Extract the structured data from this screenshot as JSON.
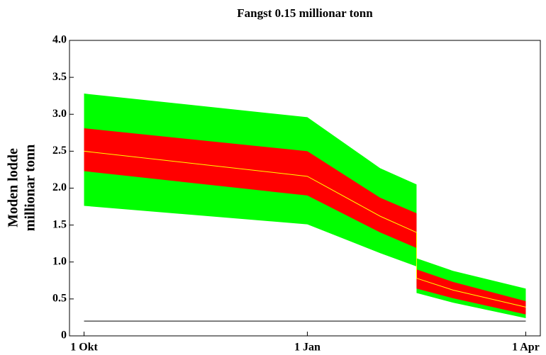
{
  "chart_data": {
    "type": "fan",
    "title": "Fangst 0.15 millionar tonn",
    "y_label": [
      "Moden lodde",
      "millionar tonn"
    ],
    "x": [
      0,
      92,
      122,
      137,
      137,
      152,
      182
    ],
    "xlim": [
      -6,
      188
    ],
    "xticks": [
      {
        "value": 0,
        "label": "1 Okt"
      },
      {
        "value": 92,
        "label": "1 Jan"
      },
      {
        "value": 182,
        "label": "1 Apr"
      }
    ],
    "ylim": [
      0,
      4
    ],
    "yticks": [
      0,
      0.5,
      {
        "value": 1,
        "label": "1.0"
      },
      1.5,
      {
        "value": 2,
        "label": "2.0"
      },
      2.5,
      {
        "value": 3,
        "label": "3.0"
      },
      3.5,
      {
        "value": 4,
        "label": "4.0"
      }
    ],
    "bands": [
      {
        "color": "#00ff00",
        "upper": [
          3.28,
          2.96,
          2.27,
          2.05,
          1.05,
          0.88,
          0.64
        ],
        "lower": [
          1.76,
          1.51,
          1.12,
          0.94,
          0.58,
          0.45,
          0.24
        ]
      },
      {
        "color": "#ff0000",
        "upper": [
          2.81,
          2.5,
          1.87,
          1.66,
          0.9,
          0.73,
          0.47
        ],
        "lower": [
          2.23,
          1.9,
          1.4,
          1.19,
          0.64,
          0.51,
          0.29
        ]
      }
    ],
    "lines": [
      {
        "color": "#ffff00",
        "values": [
          2.5,
          2.16,
          1.62,
          1.4,
          0.78,
          0.62,
          0.39
        ]
      }
    ],
    "reference": {
      "value": 0.2,
      "color": "#000000",
      "from": 0,
      "to": 182
    }
  }
}
